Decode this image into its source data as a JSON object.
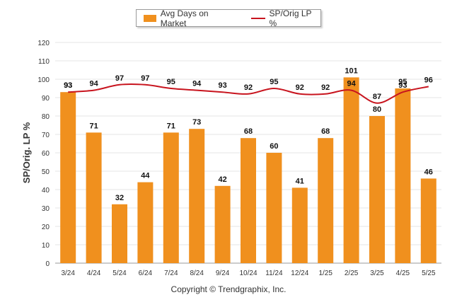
{
  "legend": {
    "bar_label": "Avg Days on Market",
    "line_label": "SP/Orig LP %"
  },
  "copyright": "Copyright © Trendgraphix, Inc.",
  "colors": {
    "bar": "#F0901E",
    "line": "#C8141E",
    "grid": "#e6e6e6",
    "axis": "#333333"
  },
  "chart_data": {
    "type": "bar",
    "title": "",
    "xlabel": "",
    "ylabel": "SP/Orig. LP %",
    "ylim": [
      0,
      120
    ],
    "yticks": [
      0,
      10,
      20,
      30,
      40,
      50,
      60,
      70,
      80,
      90,
      100,
      110,
      120
    ],
    "grid": true,
    "legend_position": "top-center",
    "categories": [
      "3/24",
      "4/24",
      "5/24",
      "6/24",
      "7/24",
      "8/24",
      "9/24",
      "10/24",
      "11/24",
      "12/24",
      "1/25",
      "2/25",
      "3/25",
      "4/25",
      "5/25"
    ],
    "series": [
      {
        "name": "Avg Days on Market",
        "type": "bar",
        "values": [
          93,
          71,
          32,
          44,
          71,
          73,
          42,
          68,
          60,
          41,
          68,
          101,
          80,
          95,
          46
        ]
      },
      {
        "name": "SP/Orig LP %",
        "type": "line",
        "values": [
          93,
          94,
          97,
          97,
          95,
          94,
          93,
          92,
          95,
          92,
          92,
          94,
          87,
          93,
          96
        ]
      }
    ]
  }
}
